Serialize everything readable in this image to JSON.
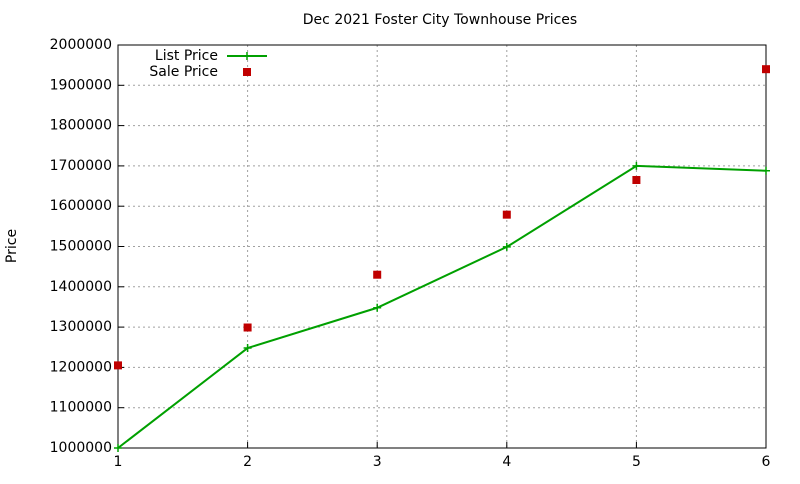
{
  "chart_data": {
    "type": "line",
    "title": "Dec 2021 Foster City Townhouse Prices",
    "y_label": "Price",
    "x": [
      1,
      2,
      3,
      4,
      5,
      6
    ],
    "series": [
      {
        "name": "List Price",
        "color": "#00a000",
        "mode": "linespoints",
        "values": [
          1000000,
          1248000,
          1348000,
          1499000,
          1700000,
          1688000
        ]
      },
      {
        "name": "Sale Price",
        "color": "#c00000",
        "mode": "points",
        "values": [
          1205000,
          1299000,
          1430000,
          1579000,
          1665000,
          1940000
        ]
      }
    ],
    "xlim": [
      1,
      6
    ],
    "xticks": [
      1,
      2,
      3,
      4,
      5,
      6
    ],
    "ylim": [
      1000000,
      2000000
    ],
    "yticks": [
      1000000,
      1100000,
      1200000,
      1300000,
      1400000,
      1500000,
      1600000,
      1700000,
      1800000,
      1900000,
      2000000
    ],
    "grid": true,
    "legend": "top-left"
  }
}
